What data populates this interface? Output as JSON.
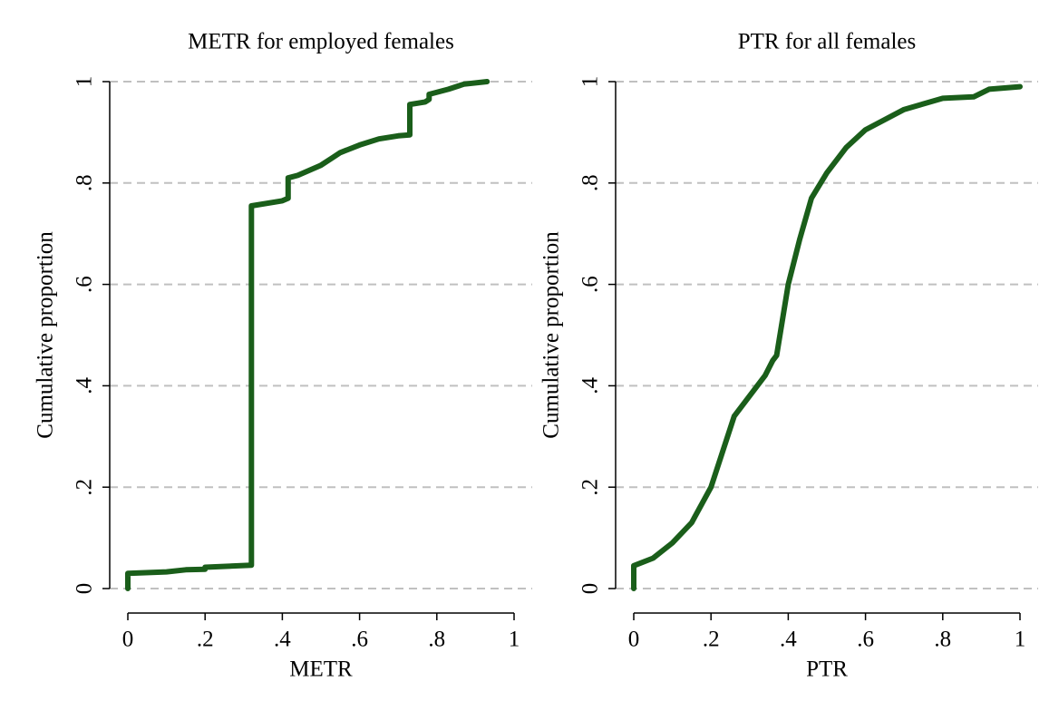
{
  "chart_data": [
    {
      "type": "line",
      "title": "METR for employed females",
      "xlabel": "METR",
      "ylabel": "Cumulative proportion",
      "x": [
        0,
        0,
        0.1,
        0.15,
        0.2,
        0.2,
        0.32,
        0.32,
        0.4,
        0.415,
        0.415,
        0.44,
        0.5,
        0.53,
        0.55,
        0.6,
        0.65,
        0.7,
        0.73,
        0.73,
        0.77,
        0.78,
        0.78,
        0.83,
        0.87,
        0.93
      ],
      "values": [
        0,
        0.03,
        0.033,
        0.037,
        0.038,
        0.042,
        0.046,
        0.755,
        0.765,
        0.77,
        0.81,
        0.815,
        0.835,
        0.85,
        0.86,
        0.875,
        0.887,
        0.893,
        0.895,
        0.955,
        0.96,
        0.965,
        0.975,
        0.985,
        0.995,
        1
      ],
      "color": "#1a5e1a",
      "xlim": [
        0,
        1
      ],
      "ylim": [
        0,
        1
      ],
      "xticks": [
        0,
        {
          "value": 0.2,
          "label": ".2"
        },
        {
          "value": 0.4,
          "label": ".4"
        },
        {
          "value": 0.6,
          "label": ".6"
        },
        {
          "value": 0.8,
          "label": ".8"
        },
        1
      ],
      "yticks": [
        0,
        {
          "value": 0.2,
          "label": ".2"
        },
        {
          "value": 0.4,
          "label": ".4"
        },
        {
          "value": 0.6,
          "label": ".6"
        },
        {
          "value": 0.8,
          "label": ".8"
        },
        1
      ],
      "grid": true
    },
    {
      "type": "line",
      "title": "PTR for all females",
      "xlabel": "PTR",
      "ylabel": "Cumulative proportion",
      "x": [
        0,
        0,
        0.05,
        0.1,
        0.15,
        0.2,
        0.23,
        0.26,
        0.3,
        0.34,
        0.36,
        0.37,
        0.4,
        0.43,
        0.46,
        0.5,
        0.55,
        0.6,
        0.7,
        0.8,
        0.88,
        0.92,
        1
      ],
      "values": [
        0,
        0.045,
        0.06,
        0.09,
        0.13,
        0.2,
        0.27,
        0.34,
        0.38,
        0.42,
        0.45,
        0.46,
        0.6,
        0.69,
        0.77,
        0.82,
        0.87,
        0.905,
        0.945,
        0.967,
        0.97,
        0.985,
        0.99
      ],
      "color": "#1a5e1a",
      "xlim": [
        0,
        1
      ],
      "ylim": [
        0,
        1
      ],
      "xticks": [
        0,
        {
          "value": 0.2,
          "label": ".2"
        },
        {
          "value": 0.4,
          "label": ".4"
        },
        {
          "value": 0.6,
          "label": ".6"
        },
        {
          "value": 0.8,
          "label": ".8"
        },
        1
      ],
      "yticks": [
        0,
        {
          "value": 0.2,
          "label": ".2"
        },
        {
          "value": 0.4,
          "label": ".4"
        },
        {
          "value": 0.6,
          "label": ".6"
        },
        {
          "value": 0.8,
          "label": ".8"
        },
        1
      ],
      "grid": true
    }
  ]
}
